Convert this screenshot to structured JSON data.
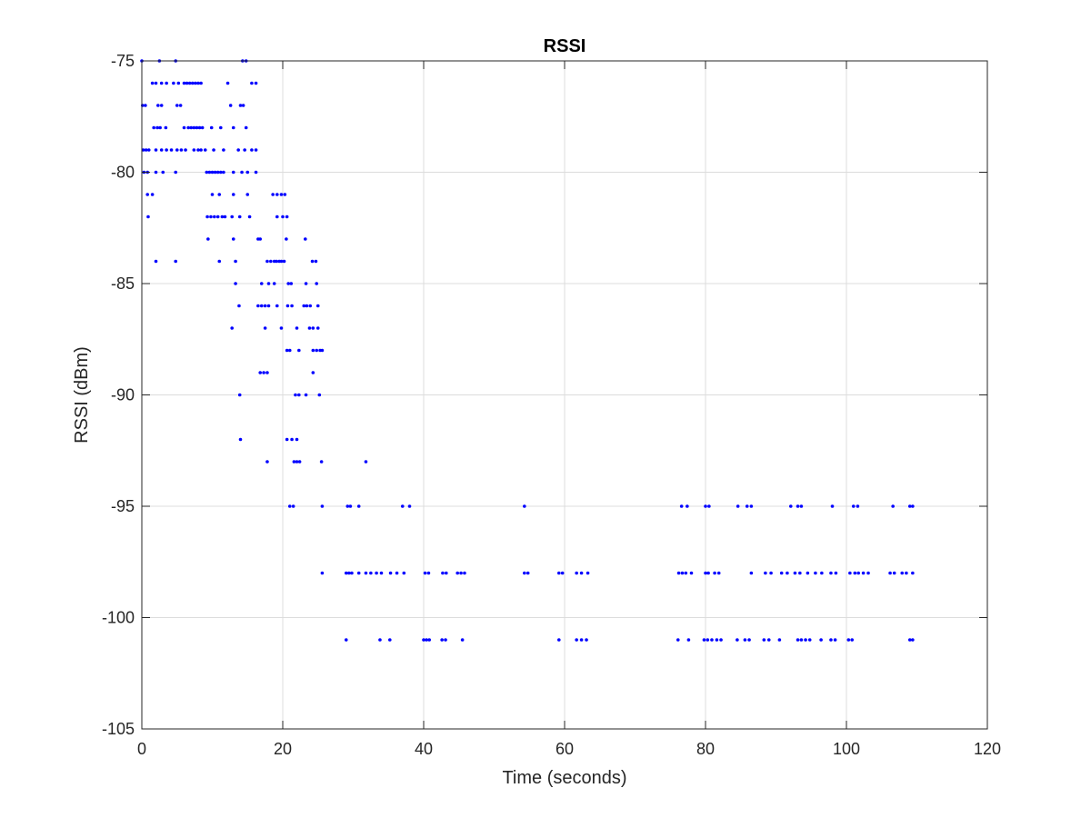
{
  "chart_data": {
    "type": "scatter",
    "title": "RSSI",
    "xlabel": "Time (seconds)",
    "ylabel": "RSSI (dBm)",
    "xlim": [
      0,
      120
    ],
    "ylim": [
      -105,
      -75
    ],
    "xticks": [
      0,
      20,
      40,
      60,
      80,
      100,
      120
    ],
    "yticks": [
      -105,
      -100,
      -95,
      -90,
      -85,
      -80,
      -75
    ],
    "grid": true,
    "marker_color": "#0000ff",
    "series": [
      {
        "points": [
          [
            0.0,
            -75
          ],
          [
            2.5,
            -75
          ],
          [
            4.8,
            -75
          ],
          [
            14.3,
            -75
          ],
          [
            14.8,
            -75
          ],
          [
            1.5,
            -76
          ],
          [
            2.0,
            -76
          ],
          [
            2.8,
            -76
          ],
          [
            3.5,
            -76
          ],
          [
            4.5,
            -76
          ],
          [
            5.2,
            -76
          ],
          [
            6.0,
            -76
          ],
          [
            6.4,
            -76
          ],
          [
            6.8,
            -76
          ],
          [
            7.2,
            -76
          ],
          [
            7.6,
            -76
          ],
          [
            8.0,
            -76
          ],
          [
            8.4,
            -76
          ],
          [
            12.2,
            -76
          ],
          [
            15.6,
            -76
          ],
          [
            16.2,
            -76
          ],
          [
            0.1,
            -77
          ],
          [
            0.5,
            -77
          ],
          [
            2.3,
            -77
          ],
          [
            2.8,
            -77
          ],
          [
            5.0,
            -77
          ],
          [
            5.5,
            -77
          ],
          [
            12.6,
            -77
          ],
          [
            14.0,
            -77
          ],
          [
            14.4,
            -77
          ],
          [
            1.7,
            -78
          ],
          [
            2.2,
            -78
          ],
          [
            2.6,
            -78
          ],
          [
            3.4,
            -78
          ],
          [
            6.0,
            -78
          ],
          [
            6.6,
            -78
          ],
          [
            7.0,
            -78
          ],
          [
            7.4,
            -78
          ],
          [
            7.8,
            -78
          ],
          [
            8.2,
            -78
          ],
          [
            8.6,
            -78
          ],
          [
            9.9,
            -78
          ],
          [
            11.2,
            -78
          ],
          [
            13.0,
            -78
          ],
          [
            14.8,
            -78
          ],
          [
            0.2,
            -79
          ],
          [
            0.6,
            -79
          ],
          [
            1.0,
            -79
          ],
          [
            2.0,
            -79
          ],
          [
            2.8,
            -79
          ],
          [
            3.5,
            -79
          ],
          [
            4.2,
            -79
          ],
          [
            5.0,
            -79
          ],
          [
            5.6,
            -79
          ],
          [
            6.2,
            -79
          ],
          [
            7.4,
            -79
          ],
          [
            8.0,
            -79
          ],
          [
            8.4,
            -79
          ],
          [
            9.0,
            -79
          ],
          [
            10.2,
            -79
          ],
          [
            11.6,
            -79
          ],
          [
            13.7,
            -79
          ],
          [
            14.6,
            -79
          ],
          [
            15.6,
            -79
          ],
          [
            16.2,
            -79
          ],
          [
            0.3,
            -80
          ],
          [
            0.8,
            -80
          ],
          [
            2.0,
            -80
          ],
          [
            3.0,
            -80
          ],
          [
            4.8,
            -80
          ],
          [
            9.2,
            -80
          ],
          [
            9.6,
            -80
          ],
          [
            10.0,
            -80
          ],
          [
            10.4,
            -80
          ],
          [
            10.8,
            -80
          ],
          [
            11.2,
            -80
          ],
          [
            11.6,
            -80
          ],
          [
            13.0,
            -80
          ],
          [
            14.2,
            -80
          ],
          [
            15.0,
            -80
          ],
          [
            16.2,
            -80
          ],
          [
            0.8,
            -81
          ],
          [
            1.5,
            -81
          ],
          [
            10.0,
            -81
          ],
          [
            11.0,
            -81
          ],
          [
            13.0,
            -81
          ],
          [
            15.0,
            -81
          ],
          [
            18.6,
            -81
          ],
          [
            19.2,
            -81
          ],
          [
            19.8,
            -81
          ],
          [
            20.3,
            -81
          ],
          [
            0.9,
            -82
          ],
          [
            9.3,
            -82
          ],
          [
            9.8,
            -82
          ],
          [
            10.3,
            -82
          ],
          [
            10.8,
            -82
          ],
          [
            11.4,
            -82
          ],
          [
            11.8,
            -82
          ],
          [
            12.8,
            -82
          ],
          [
            13.9,
            -82
          ],
          [
            15.3,
            -82
          ],
          [
            19.2,
            -82
          ],
          [
            20.0,
            -82
          ],
          [
            20.6,
            -82
          ],
          [
            9.4,
            -83
          ],
          [
            13.0,
            -83
          ],
          [
            16.5,
            -83
          ],
          [
            16.8,
            -83
          ],
          [
            20.5,
            -83
          ],
          [
            23.2,
            -83
          ],
          [
            2.0,
            -84
          ],
          [
            4.8,
            -84
          ],
          [
            11.0,
            -84
          ],
          [
            13.3,
            -84
          ],
          [
            17.8,
            -84
          ],
          [
            18.3,
            -84
          ],
          [
            18.8,
            -84
          ],
          [
            19.1,
            -84
          ],
          [
            19.5,
            -84
          ],
          [
            19.8,
            -84
          ],
          [
            20.2,
            -84
          ],
          [
            24.2,
            -84
          ],
          [
            24.7,
            -84
          ],
          [
            13.3,
            -85
          ],
          [
            17.0,
            -85
          ],
          [
            18.0,
            -85
          ],
          [
            18.8,
            -85
          ],
          [
            20.8,
            -85
          ],
          [
            21.2,
            -85
          ],
          [
            23.3,
            -85
          ],
          [
            24.8,
            -85
          ],
          [
            13.8,
            -86
          ],
          [
            16.5,
            -86
          ],
          [
            17.0,
            -86
          ],
          [
            17.5,
            -86
          ],
          [
            18.0,
            -86
          ],
          [
            19.2,
            -86
          ],
          [
            20.7,
            -86
          ],
          [
            21.3,
            -86
          ],
          [
            23.0,
            -86
          ],
          [
            23.4,
            -86
          ],
          [
            23.9,
            -86
          ],
          [
            25.0,
            -86
          ],
          [
            12.8,
            -87
          ],
          [
            17.5,
            -87
          ],
          [
            19.8,
            -87
          ],
          [
            22.0,
            -87
          ],
          [
            23.8,
            -87
          ],
          [
            24.3,
            -87
          ],
          [
            25.0,
            -87
          ],
          [
            20.6,
            -88
          ],
          [
            21.0,
            -88
          ],
          [
            22.3,
            -88
          ],
          [
            24.3,
            -88
          ],
          [
            24.8,
            -88
          ],
          [
            25.3,
            -88
          ],
          [
            25.6,
            -88
          ],
          [
            16.8,
            -89
          ],
          [
            17.3,
            -89
          ],
          [
            17.8,
            -89
          ],
          [
            24.3,
            -89
          ],
          [
            13.9,
            -90
          ],
          [
            21.8,
            -90
          ],
          [
            22.3,
            -90
          ],
          [
            23.3,
            -90
          ],
          [
            25.2,
            -90
          ],
          [
            20.6,
            -92
          ],
          [
            21.3,
            -92
          ],
          [
            22.0,
            -92
          ],
          [
            14.0,
            -92
          ],
          [
            17.8,
            -93
          ],
          [
            21.6,
            -93
          ],
          [
            22.0,
            -93
          ],
          [
            22.4,
            -93
          ],
          [
            25.5,
            -93
          ],
          [
            31.8,
            -93
          ],
          [
            21.0,
            -95
          ],
          [
            21.5,
            -95
          ],
          [
            25.6,
            -95
          ],
          [
            29.2,
            -95
          ],
          [
            29.6,
            -95
          ],
          [
            30.8,
            -95
          ],
          [
            37.0,
            -95
          ],
          [
            38.0,
            -95
          ],
          [
            54.3,
            -95
          ],
          [
            76.6,
            -95
          ],
          [
            77.4,
            -95
          ],
          [
            80.0,
            -95
          ],
          [
            80.5,
            -95
          ],
          [
            84.6,
            -95
          ],
          [
            85.9,
            -95
          ],
          [
            86.5,
            -95
          ],
          [
            92.1,
            -95
          ],
          [
            93.1,
            -95
          ],
          [
            93.6,
            -95
          ],
          [
            98.0,
            -95
          ],
          [
            101.0,
            -95
          ],
          [
            101.6,
            -95
          ],
          [
            106.6,
            -95
          ],
          [
            109.0,
            -95
          ],
          [
            109.4,
            -95
          ],
          [
            25.6,
            -98
          ],
          [
            29.0,
            -98
          ],
          [
            29.4,
            -98
          ],
          [
            29.8,
            -98
          ],
          [
            30.8,
            -98
          ],
          [
            31.8,
            -98
          ],
          [
            32.5,
            -98
          ],
          [
            33.3,
            -98
          ],
          [
            34.0,
            -98
          ],
          [
            35.3,
            -98
          ],
          [
            36.2,
            -98
          ],
          [
            37.2,
            -98
          ],
          [
            40.2,
            -98
          ],
          [
            40.7,
            -98
          ],
          [
            42.7,
            -98
          ],
          [
            43.2,
            -98
          ],
          [
            44.8,
            -98
          ],
          [
            45.3,
            -98
          ],
          [
            45.8,
            -98
          ],
          [
            54.3,
            -98
          ],
          [
            54.8,
            -98
          ],
          [
            59.2,
            -98
          ],
          [
            59.7,
            -98
          ],
          [
            61.7,
            -98
          ],
          [
            62.4,
            -98
          ],
          [
            63.3,
            -98
          ],
          [
            76.2,
            -98
          ],
          [
            76.7,
            -98
          ],
          [
            77.2,
            -98
          ],
          [
            78.0,
            -98
          ],
          [
            80.0,
            -98
          ],
          [
            80.4,
            -98
          ],
          [
            81.3,
            -98
          ],
          [
            81.9,
            -98
          ],
          [
            86.5,
            -98
          ],
          [
            88.5,
            -98
          ],
          [
            89.3,
            -98
          ],
          [
            90.8,
            -98
          ],
          [
            91.6,
            -98
          ],
          [
            92.7,
            -98
          ],
          [
            93.4,
            -98
          ],
          [
            94.5,
            -98
          ],
          [
            95.6,
            -98
          ],
          [
            96.5,
            -98
          ],
          [
            97.8,
            -98
          ],
          [
            98.5,
            -98
          ],
          [
            100.5,
            -98
          ],
          [
            101.2,
            -98
          ],
          [
            101.7,
            -98
          ],
          [
            102.4,
            -98
          ],
          [
            103.1,
            -98
          ],
          [
            106.2,
            -98
          ],
          [
            106.8,
            -98
          ],
          [
            107.9,
            -98
          ],
          [
            108.5,
            -98
          ],
          [
            109.4,
            -98
          ],
          [
            29.0,
            -101
          ],
          [
            33.8,
            -101
          ],
          [
            35.2,
            -101
          ],
          [
            40.0,
            -101
          ],
          [
            40.4,
            -101
          ],
          [
            40.8,
            -101
          ],
          [
            42.6,
            -101
          ],
          [
            43.1,
            -101
          ],
          [
            45.5,
            -101
          ],
          [
            59.2,
            -101
          ],
          [
            61.7,
            -101
          ],
          [
            62.4,
            -101
          ],
          [
            63.1,
            -101
          ],
          [
            76.1,
            -101
          ],
          [
            77.6,
            -101
          ],
          [
            79.8,
            -101
          ],
          [
            80.3,
            -101
          ],
          [
            80.9,
            -101
          ],
          [
            81.6,
            -101
          ],
          [
            82.2,
            -101
          ],
          [
            84.5,
            -101
          ],
          [
            85.6,
            -101
          ],
          [
            86.2,
            -101
          ],
          [
            88.3,
            -101
          ],
          [
            89.0,
            -101
          ],
          [
            90.5,
            -101
          ],
          [
            93.1,
            -101
          ],
          [
            93.6,
            -101
          ],
          [
            94.2,
            -101
          ],
          [
            94.8,
            -101
          ],
          [
            96.4,
            -101
          ],
          [
            97.8,
            -101
          ],
          [
            98.4,
            -101
          ],
          [
            100.3,
            -101
          ],
          [
            100.8,
            -101
          ],
          [
            109.0,
            -101
          ],
          [
            109.4,
            -101
          ]
        ]
      }
    ]
  }
}
